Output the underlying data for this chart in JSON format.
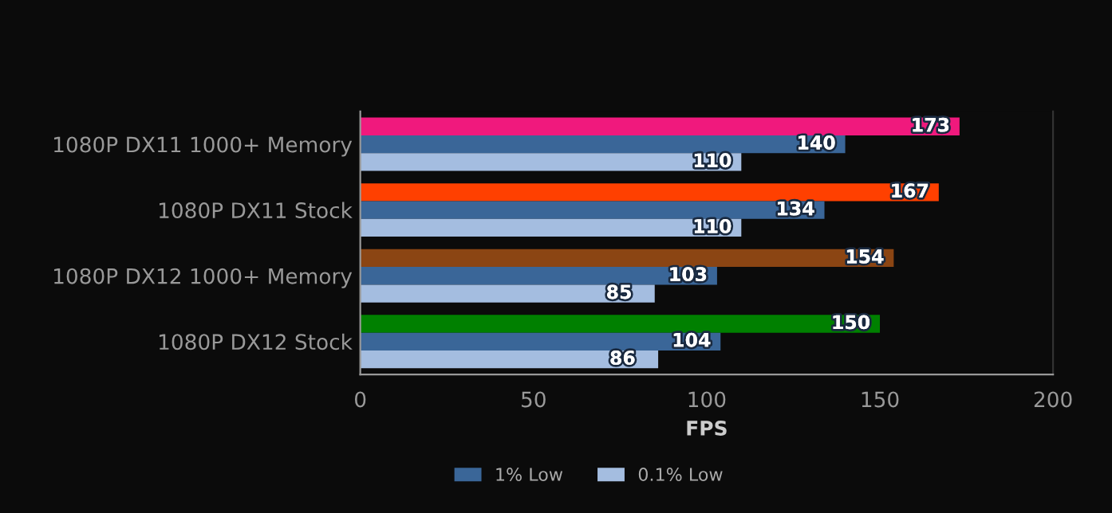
{
  "chart_data": {
    "type": "bar",
    "orientation": "horizontal",
    "xlabel": "FPS",
    "categories": [
      "1080P DX11 1000+ Memory",
      "1080P DX11 Stock",
      "1080P DX12 1000+ Memory",
      "1080P DX12 Stock"
    ],
    "series": [
      {
        "colors": [
          "#f0197d",
          "#ff4000",
          "#8b4513",
          "#008000"
        ],
        "values": [
          173,
          167,
          154,
          150
        ]
      },
      {
        "name": "1% Low",
        "color": "#3a6698",
        "values": [
          140,
          134,
          103,
          104
        ]
      },
      {
        "name": "0.1% Low",
        "color": "#a4bde0",
        "values": [
          110,
          110,
          85,
          86
        ]
      }
    ],
    "xlim": [
      0,
      200
    ],
    "xticks": [
      0,
      50,
      100,
      150,
      200
    ],
    "data_labels": true,
    "legend": "bottom",
    "grid": false
  }
}
